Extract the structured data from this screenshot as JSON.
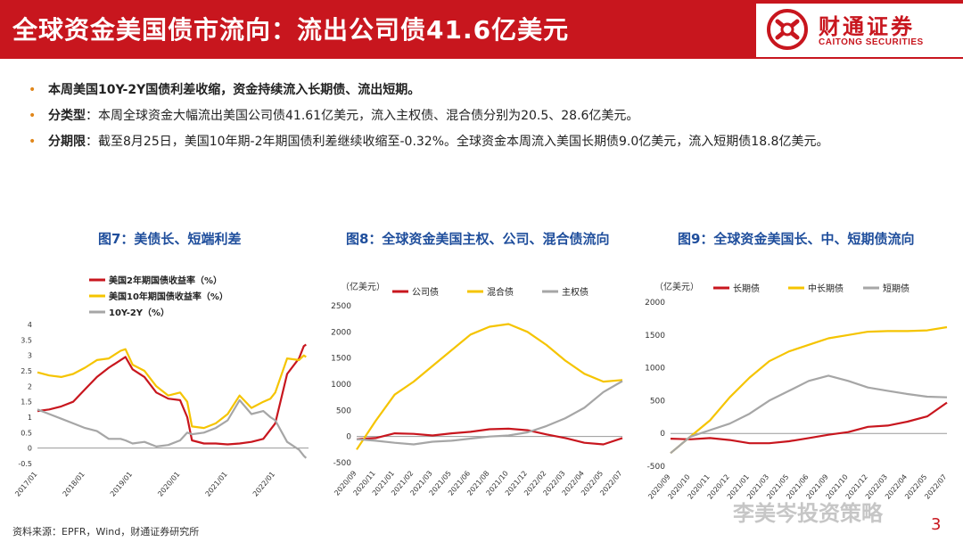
{
  "header": {
    "title": "全球资金美国债市流向：流出公司债41.6亿美元",
    "logo_cn": "财通证券",
    "logo_en": "CAITONG SECURITIES"
  },
  "bullets": [
    {
      "bold": "本周美国10Y-2Y国债利差收缩，资金持续流入长期债、流出短期。",
      "text": ""
    },
    {
      "bold": "分类型",
      "text": "：本周全球资金大幅流出美国公司债41.61亿美元，流入主权债、混合债分别为20.5、28.6亿美元。"
    },
    {
      "bold": "分期限",
      "text": "：截至8月25日，美国10年期-2年期国债利差继续收缩至-0.32%。全球资金本周流入美国长期债9.0亿美元，流入短期债18.8亿美元。"
    }
  ],
  "footer": {
    "source": "资料来源：EPFR，Wind，财通证券研究所",
    "page": "3",
    "watermark": "李美岑投资策略"
  },
  "chart_data": [
    {
      "type": "line",
      "title": "图7：美债长、短端利差",
      "ylim": [
        -0.5,
        4
      ],
      "yticks": [
        "-0.5",
        "0",
        "0.5",
        "1",
        "1.5",
        "2",
        "2.5",
        "3",
        "3.5",
        "4"
      ],
      "xticks": [
        "2017/01",
        "2018/01",
        "2019/01",
        "2020/01",
        "2021/01",
        "2022/01"
      ],
      "legend_position": "top-left",
      "series": [
        {
          "name": "美国2年期国债收益率（%）",
          "color": "#c8161e",
          "x": [
            2017.0,
            2017.25,
            2017.5,
            2017.75,
            2018.0,
            2018.25,
            2018.5,
            2018.75,
            2018.85,
            2019.0,
            2019.25,
            2019.5,
            2019.75,
            2020.0,
            2020.15,
            2020.25,
            2020.5,
            2020.75,
            2021.0,
            2021.25,
            2021.5,
            2021.75,
            2021.9,
            2022.0,
            2022.25,
            2022.5,
            2022.6,
            2022.65
          ],
          "y": [
            1.2,
            1.25,
            1.35,
            1.5,
            1.9,
            2.3,
            2.6,
            2.85,
            2.95,
            2.55,
            2.3,
            1.8,
            1.6,
            1.55,
            1.0,
            0.25,
            0.15,
            0.15,
            0.12,
            0.15,
            0.2,
            0.3,
            0.6,
            0.8,
            2.4,
            2.9,
            3.3,
            3.35
          ]
        },
        {
          "name": "美国10年期国债收益率（%）",
          "color": "#f5c400",
          "x": [
            2017.0,
            2017.25,
            2017.5,
            2017.75,
            2018.0,
            2018.25,
            2018.5,
            2018.75,
            2018.85,
            2019.0,
            2019.25,
            2019.5,
            2019.75,
            2020.0,
            2020.15,
            2020.25,
            2020.5,
            2020.75,
            2021.0,
            2021.25,
            2021.5,
            2021.75,
            2021.9,
            2022.0,
            2022.25,
            2022.5,
            2022.6,
            2022.65
          ],
          "y": [
            2.45,
            2.35,
            2.3,
            2.4,
            2.6,
            2.85,
            2.9,
            3.15,
            3.2,
            2.7,
            2.5,
            2.0,
            1.7,
            1.8,
            1.5,
            0.7,
            0.65,
            0.8,
            1.1,
            1.7,
            1.3,
            1.5,
            1.6,
            1.8,
            2.9,
            2.85,
            3.0,
            2.95
          ]
        },
        {
          "name": "10Y-2Y（%）",
          "color": "#a6a6a6",
          "x": [
            2017.0,
            2017.25,
            2017.5,
            2017.75,
            2018.0,
            2018.25,
            2018.5,
            2018.75,
            2018.85,
            2019.0,
            2019.25,
            2019.5,
            2019.75,
            2020.0,
            2020.15,
            2020.25,
            2020.5,
            2020.75,
            2021.0,
            2021.25,
            2021.5,
            2021.75,
            2021.9,
            2022.0,
            2022.25,
            2022.5,
            2022.6,
            2022.65
          ],
          "y": [
            1.25,
            1.1,
            0.95,
            0.8,
            0.65,
            0.55,
            0.3,
            0.3,
            0.25,
            0.15,
            0.2,
            0.05,
            0.1,
            0.25,
            0.5,
            0.45,
            0.5,
            0.65,
            0.9,
            1.55,
            1.1,
            1.2,
            1.0,
            0.9,
            0.2,
            -0.05,
            -0.25,
            -0.32
          ]
        }
      ]
    },
    {
      "type": "line",
      "title": "图8：全球资金美国主权、公司、混合债流向",
      "unit": "（亿美元）",
      "ylim": [
        -500,
        2500
      ],
      "yticks": [
        "-500",
        "0",
        "500",
        "1000",
        "1500",
        "2000",
        "2500"
      ],
      "xticks": [
        "2020/09",
        "2020/11",
        "2021/01",
        "2021/02",
        "2021/03",
        "2021/05",
        "2021/06",
        "2021/08",
        "2021/10",
        "2021/12",
        "2022/02",
        "2022/03",
        "2022/04",
        "2022/05",
        "2022/07"
      ],
      "legend_position": "top",
      "series": [
        {
          "name": "公司债",
          "color": "#c8161e",
          "x": [
            0,
            1,
            2,
            3,
            4,
            5,
            6,
            7,
            8,
            9,
            10,
            11,
            12,
            13,
            14
          ],
          "y": [
            -50,
            -30,
            60,
            50,
            20,
            60,
            90,
            140,
            150,
            120,
            40,
            -30,
            -120,
            -150,
            -30
          ]
        },
        {
          "name": "混合债",
          "color": "#f5c400",
          "x": [
            0,
            1,
            2,
            3,
            4,
            5,
            6,
            7,
            8,
            9,
            10,
            11,
            12,
            13,
            14
          ],
          "y": [
            -250,
            300,
            800,
            1050,
            1350,
            1650,
            1950,
            2100,
            2150,
            2000,
            1750,
            1450,
            1200,
            1050,
            1080
          ]
        },
        {
          "name": "主权债",
          "color": "#a6a6a6",
          "x": [
            0,
            1,
            2,
            3,
            4,
            5,
            6,
            7,
            8,
            9,
            10,
            11,
            12,
            13,
            14
          ],
          "y": [
            -50,
            -80,
            -120,
            -150,
            -100,
            -80,
            -40,
            0,
            20,
            80,
            200,
            350,
            550,
            850,
            1060
          ]
        }
      ]
    },
    {
      "type": "line",
      "title": "图9：全球资金美国长、中、短期债流向",
      "unit": "（亿美元）",
      "ylim": [
        -500,
        2000
      ],
      "yticks": [
        "-500",
        "0",
        "500",
        "1000",
        "1500",
        "2000"
      ],
      "xticks": [
        "2020/09",
        "2020/10",
        "2020/11",
        "2020/12",
        "2021/01",
        "2021/03",
        "2021/05",
        "2021/06",
        "2021/09",
        "2021/10",
        "2021/12",
        "2022/03",
        "2022/04",
        "2022/05",
        "2022/07"
      ],
      "legend_position": "top",
      "series": [
        {
          "name": "长期债",
          "color": "#c8161e",
          "x": [
            0,
            1,
            2,
            3,
            4,
            5,
            6,
            7,
            8,
            9,
            10,
            11,
            12,
            13,
            14
          ],
          "y": [
            -80,
            -90,
            -70,
            -100,
            -150,
            -150,
            -120,
            -70,
            -20,
            20,
            100,
            120,
            180,
            260,
            470
          ]
        },
        {
          "name": "中长期债",
          "color": "#f5c400",
          "x": [
            0,
            1,
            2,
            3,
            4,
            5,
            6,
            7,
            8,
            9,
            10,
            11,
            12,
            13,
            14
          ],
          "y": [
            -300,
            -50,
            200,
            550,
            850,
            1100,
            1250,
            1350,
            1450,
            1500,
            1550,
            1560,
            1560,
            1570,
            1620
          ]
        },
        {
          "name": "短期债",
          "color": "#a6a6a6",
          "x": [
            0,
            1,
            2,
            3,
            4,
            5,
            6,
            7,
            8,
            9,
            10,
            11,
            12,
            13,
            14
          ],
          "y": [
            -300,
            -50,
            50,
            150,
            300,
            500,
            650,
            800,
            880,
            800,
            700,
            650,
            600,
            560,
            550
          ]
        }
      ]
    }
  ]
}
